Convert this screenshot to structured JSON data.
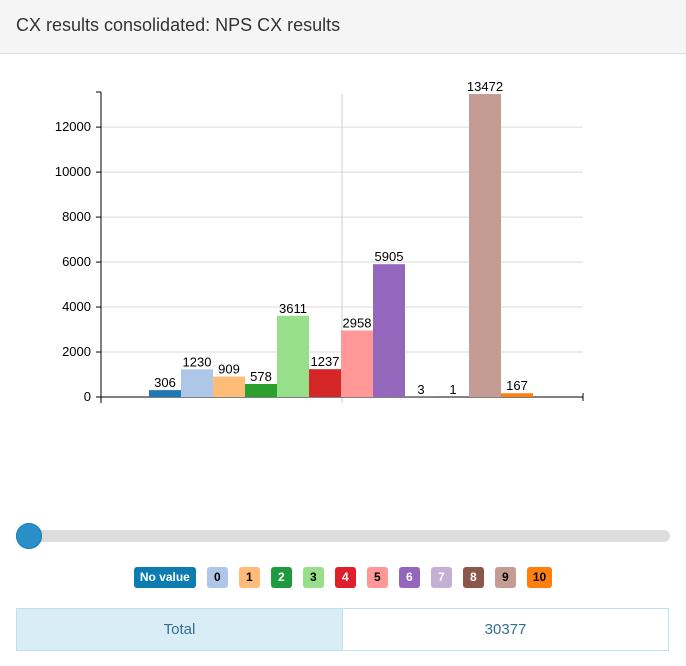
{
  "header": {
    "title": "CX results consolidated: NPS CX results"
  },
  "chart_data": {
    "type": "bar",
    "categories": [
      "No value",
      "0",
      "1",
      "2",
      "3",
      "4",
      "5",
      "6",
      "7",
      "8",
      "9",
      "10"
    ],
    "values": [
      306,
      1230,
      909,
      578,
      3611,
      1237,
      2958,
      5905,
      3,
      1,
      13472,
      167
    ],
    "colors": [
      "#1f77b4",
      "#aec7e8",
      "#ffbb78",
      "#2ca02c",
      "#98df8a",
      "#d62728",
      "#ff9896",
      "#9467bd",
      "#c5b0d5",
      "#8c564b",
      "#c49c94",
      "#ff7f0e"
    ],
    "ylim": [
      0,
      13472
    ],
    "yticks": [
      0,
      2000,
      4000,
      6000,
      8000,
      10000,
      12000
    ],
    "ytick_labels": [
      "0",
      "2000",
      "4000",
      "6000",
      "8000",
      "10000",
      "12000"
    ],
    "grid": true,
    "legend_placement": "bottom"
  },
  "legend": {
    "items": [
      {
        "label": "No value",
        "bg": "#0b7bb0",
        "fg": "#ffffff"
      },
      {
        "label": "0",
        "bg": "#aec7e8",
        "fg": "#000000"
      },
      {
        "label": "1",
        "bg": "#ffbb78",
        "fg": "#000000"
      },
      {
        "label": "2",
        "bg": "#1e9a3e",
        "fg": "#ffffff"
      },
      {
        "label": "3",
        "bg": "#98df8a",
        "fg": "#000000"
      },
      {
        "label": "4",
        "bg": "#e01f2b",
        "fg": "#ffffff"
      },
      {
        "label": "5",
        "bg": "#ff9896",
        "fg": "#000000"
      },
      {
        "label": "6",
        "bg": "#9467bd",
        "fg": "#ffffff"
      },
      {
        "label": "7",
        "bg": "#c5b0d5",
        "fg": "#ffffff"
      },
      {
        "label": "8",
        "bg": "#8c564b",
        "fg": "#ffffff"
      },
      {
        "label": "9",
        "bg": "#c49c94",
        "fg": "#000000"
      },
      {
        "label": "10",
        "bg": "#ff7f0e",
        "fg": "#000000"
      }
    ]
  },
  "slider": {
    "value": 0
  },
  "total": {
    "label": "Total",
    "value": "30377"
  }
}
